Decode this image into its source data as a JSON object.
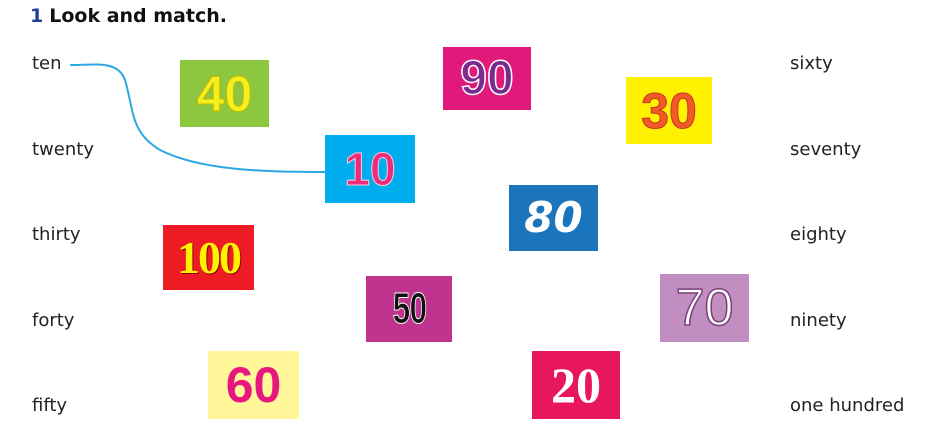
{
  "exercise": {
    "number": "1",
    "title": "Look and match."
  },
  "left_words": [
    "ten",
    "twenty",
    "thirty",
    "forty",
    "fifty"
  ],
  "right_words": [
    "sixty",
    "seventy",
    "eighty",
    "ninety",
    "one hundred"
  ],
  "cards": [
    {
      "text": "40",
      "bg": "#8dc63f",
      "color": "#f4ef1f"
    },
    {
      "text": "90",
      "bg": "#e0197a",
      "color": "#7b2a8e"
    },
    {
      "text": "30",
      "bg": "#fff200",
      "color": "#f15a24"
    },
    {
      "text": "10",
      "bg": "#00aeef",
      "color": "#ec2b7b"
    },
    {
      "text": "80",
      "bg": "#1b75bc",
      "color": "#ffffff"
    },
    {
      "text": "100",
      "bg": "#ed1c24",
      "color": "#fff200"
    },
    {
      "text": "50",
      "bg": "#c0348f",
      "color": "#111111"
    },
    {
      "text": "70",
      "bg": "#c28ec2",
      "color": "#ffffff"
    },
    {
      "text": "60",
      "bg": "#fff799",
      "color": "#e8177f"
    },
    {
      "text": "20",
      "bg": "#e8175d",
      "color": "#ffffff"
    }
  ],
  "example_line": {
    "from": "ten",
    "to": "10",
    "color": "#2aa8e0"
  }
}
